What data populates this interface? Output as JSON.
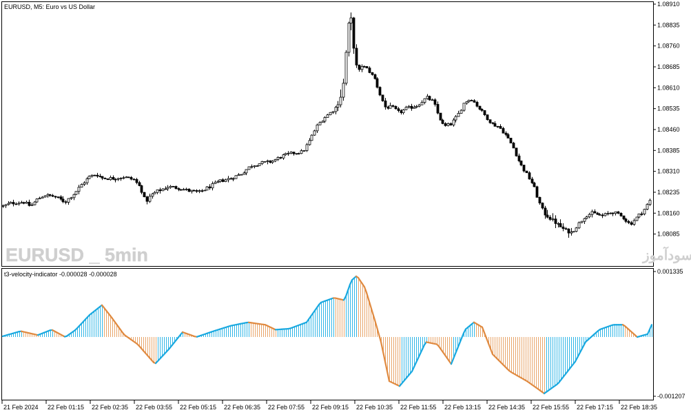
{
  "main_chart": {
    "title": "EURUSD, M5:  Euro vs US Dollar",
    "watermark_left": "EURUSD _ 5min",
    "watermark_right": "انتشار در سایت سودآموز",
    "price_ticks": [
      "1.08910",
      "1.08835",
      "1.08760",
      "1.08685",
      "1.08610",
      "1.08535",
      "1.08460",
      "1.08385",
      "1.08310",
      "1.08235",
      "1.08160",
      "1.08085"
    ]
  },
  "indicator": {
    "title": "t3-velocity-indicator -0.000028 -0.000028",
    "top_label": "0.001335",
    "bottom_label": "-0.001207",
    "up_color": "#2fb5e6",
    "down_color": "#e8a56a",
    "curve_color_up": "#1aa9e0",
    "curve_color_down": "#e08a40"
  },
  "time_axis": [
    "21 Feb 2024",
    "22 Feb 01:15",
    "22 Feb 02:35",
    "22 Feb 03:55",
    "22 Feb 05:15",
    "22 Feb 06:35",
    "22 Feb 07:55",
    "22 Feb 09:15",
    "22 Feb 10:35",
    "22 Feb 11:55",
    "22 Feb 13:15",
    "22 Feb 14:35",
    "22 Feb 15:55",
    "22 Feb 17:15",
    "22 Feb 18:35"
  ],
  "chart_data": [
    {
      "type": "candlestick",
      "title": "EURUSD, M5:  Euro vs US Dollar",
      "ylim": [
        1.0802,
        1.0892
      ],
      "x_labels": [
        "21 Feb 2024",
        "22 Feb 01:15",
        "22 Feb 02:35",
        "22 Feb 03:55",
        "22 Feb 05:15",
        "22 Feb 06:35",
        "22 Feb 07:55",
        "22 Feb 09:15",
        "22 Feb 10:35",
        "22 Feb 11:55",
        "22 Feb 13:15",
        "22 Feb 14:35",
        "22 Feb 15:55",
        "22 Feb 17:15",
        "22 Feb 18:35"
      ],
      "close_path": [
        [
          0,
          1.08185
        ],
        [
          10,
          1.08195
        ],
        [
          20,
          1.08198
        ],
        [
          30,
          1.082
        ],
        [
          40,
          1.08185
        ],
        [
          50,
          1.0821
        ],
        [
          60,
          1.08225
        ],
        [
          75,
          1.0822
        ],
        [
          90,
          1.082
        ],
        [
          105,
          1.08235
        ],
        [
          115,
          1.08265
        ],
        [
          125,
          1.0829
        ],
        [
          135,
          1.083
        ],
        [
          145,
          1.08285
        ],
        [
          160,
          1.08285
        ],
        [
          175,
          1.0829
        ],
        [
          190,
          1.0828
        ],
        [
          200,
          1.0825
        ],
        [
          207,
          1.082
        ],
        [
          215,
          1.08225
        ],
        [
          225,
          1.0824
        ],
        [
          240,
          1.08255
        ],
        [
          255,
          1.0825
        ],
        [
          270,
          1.0824
        ],
        [
          285,
          1.08235
        ],
        [
          300,
          1.08255
        ],
        [
          315,
          1.08275
        ],
        [
          330,
          1.08285
        ],
        [
          345,
          1.083
        ],
        [
          360,
          1.0833
        ],
        [
          375,
          1.0834
        ],
        [
          390,
          1.08345
        ],
        [
          405,
          1.08365
        ],
        [
          420,
          1.08375
        ],
        [
          435,
          1.0838
        ],
        [
          445,
          1.0842
        ],
        [
          455,
          1.0847
        ],
        [
          465,
          1.085
        ],
        [
          475,
          1.0852
        ],
        [
          485,
          1.08545
        ],
        [
          492,
          1.0859
        ],
        [
          496,
          1.0866
        ],
        [
          500,
          1.0883
        ],
        [
          506,
          1.0886
        ],
        [
          510,
          1.0873
        ],
        [
          515,
          1.0866
        ],
        [
          520,
          1.0869
        ],
        [
          530,
          1.08675
        ],
        [
          540,
          1.0864
        ],
        [
          548,
          1.0858
        ],
        [
          555,
          1.0854
        ],
        [
          565,
          1.0854
        ],
        [
          575,
          1.0852
        ],
        [
          585,
          1.08535
        ],
        [
          600,
          1.08545
        ],
        [
          615,
          1.08575
        ],
        [
          625,
          1.0856
        ],
        [
          632,
          1.0851
        ],
        [
          640,
          1.0847
        ],
        [
          650,
          1.0848
        ],
        [
          660,
          1.0851
        ],
        [
          670,
          1.0856
        ],
        [
          680,
          1.0857
        ],
        [
          690,
          1.0854
        ],
        [
          700,
          1.0851
        ],
        [
          710,
          1.0848
        ],
        [
          720,
          1.0847
        ],
        [
          730,
          1.0844
        ],
        [
          740,
          1.084
        ],
        [
          750,
          1.0834
        ],
        [
          760,
          1.083
        ],
        [
          770,
          1.0826
        ],
        [
          778,
          1.082
        ],
        [
          785,
          1.0816
        ],
        [
          795,
          1.0814
        ],
        [
          805,
          1.0812
        ],
        [
          815,
          1.081
        ],
        [
          825,
          1.0809
        ],
        [
          835,
          1.0812
        ],
        [
          845,
          1.0815
        ],
        [
          855,
          1.0816
        ],
        [
          870,
          1.0815
        ],
        [
          885,
          1.08165
        ],
        [
          900,
          1.08145
        ],
        [
          910,
          1.0812
        ],
        [
          920,
          1.08145
        ],
        [
          930,
          1.0817
        ],
        [
          940,
          1.0821
        ],
        [
          946,
          1.08235
        ]
      ]
    },
    {
      "type": "histogram",
      "title": "t3-velocity-indicator -0.000028 -0.000028",
      "ylim": [
        -0.001207,
        0.001335
      ],
      "path": [
        [
          0,
          0.0
        ],
        [
          30,
          0.00012
        ],
        [
          55,
          4e-05
        ],
        [
          75,
          0.00015
        ],
        [
          95,
          0.0
        ],
        [
          110,
          0.00015
        ],
        [
          130,
          0.00045
        ],
        [
          148,
          0.00065
        ],
        [
          162,
          0.0004
        ],
        [
          180,
          5e-05
        ],
        [
          200,
          -0.00015
        ],
        [
          225,
          -0.00055
        ],
        [
          245,
          -0.00025
        ],
        [
          265,
          0.0001
        ],
        [
          285,
          0.0
        ],
        [
          310,
          0.00012
        ],
        [
          335,
          0.00023
        ],
        [
          360,
          0.0003
        ],
        [
          385,
          0.00025
        ],
        [
          400,
          0.00015
        ],
        [
          420,
          0.00017
        ],
        [
          445,
          0.0003
        ],
        [
          465,
          0.0007
        ],
        [
          485,
          0.0008
        ],
        [
          500,
          0.00075
        ],
        [
          510,
          0.00115
        ],
        [
          518,
          0.00125
        ],
        [
          530,
          0.001
        ],
        [
          545,
          0.0003
        ],
        [
          553,
          -0.0001
        ],
        [
          565,
          -0.0009
        ],
        [
          580,
          -0.001
        ],
        [
          598,
          -0.0007
        ],
        [
          618,
          -0.0001
        ],
        [
          635,
          -0.00015
        ],
        [
          655,
          -0.00055
        ],
        [
          675,
          0.00015
        ],
        [
          688,
          0.0003
        ],
        [
          700,
          0.0002
        ],
        [
          715,
          -0.00035
        ],
        [
          740,
          -0.0007
        ],
        [
          765,
          -0.0009
        ],
        [
          790,
          -0.00115
        ],
        [
          810,
          -0.00095
        ],
        [
          835,
          -0.0005
        ],
        [
          850,
          -0.0001
        ],
        [
          870,
          0.00015
        ],
        [
          890,
          0.00025
        ],
        [
          905,
          0.00025
        ],
        [
          925,
          0.0
        ],
        [
          940,
          6e-05
        ],
        [
          946,
          0.00025
        ]
      ]
    }
  ]
}
